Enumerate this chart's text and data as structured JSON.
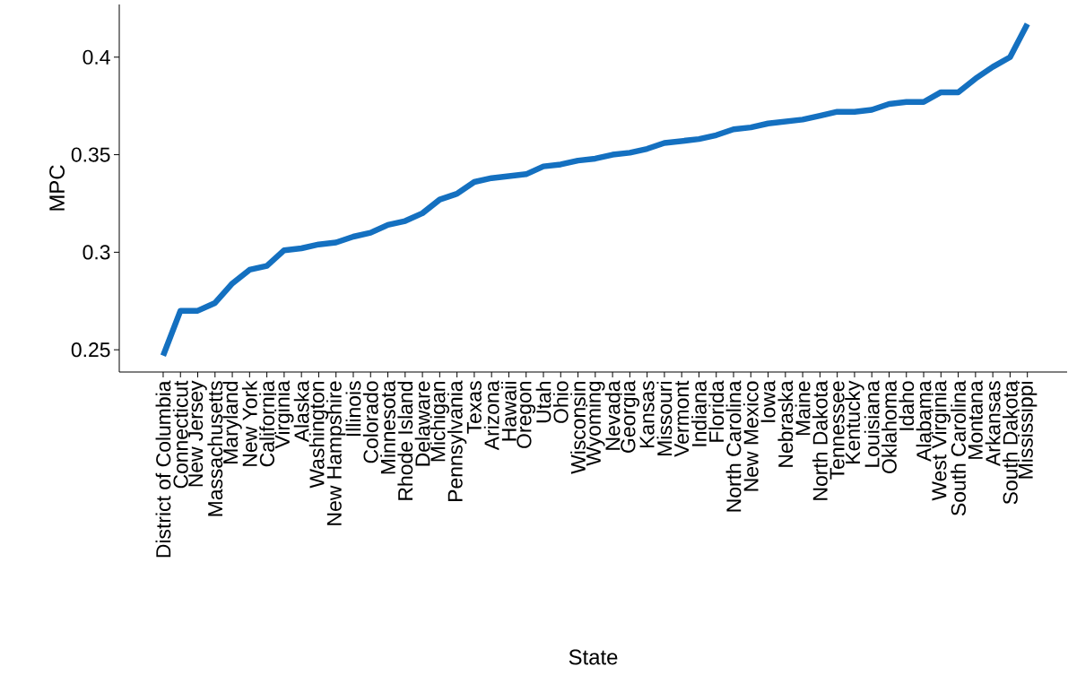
{
  "chart_data": {
    "type": "line",
    "xlabel": "State",
    "ylabel": "MPC",
    "color": "#1470c0",
    "categories": [
      "District of Columbia",
      "Connecticut",
      "New Jersey",
      "Massachusetts",
      "Maryland",
      "New York",
      "California",
      "Virginia",
      "Alaska",
      "Washington",
      "New Hampshire",
      "Illinois",
      "Colorado",
      "Minnesota",
      "Rhode Island",
      "Delaware",
      "Michigan",
      "Pennsylvania",
      "Texas",
      "Arizona",
      "Hawaii",
      "Oregon",
      "Utah",
      "Ohio",
      "Wisconsin",
      "Wyoming",
      "Nevada",
      "Georgia",
      "Kansas",
      "Missouri",
      "Vermont",
      "Indiana",
      "Florida",
      "North Carolina",
      "New Mexico",
      "Iowa",
      "Nebraska",
      "Maine",
      "North Dakota",
      "Tennessee",
      "Kentucky",
      "Louisiana",
      "Oklahoma",
      "Idaho",
      "Alabama",
      "West Virginia",
      "South Carolina",
      "Montana",
      "Arkansas",
      "South Dakota",
      "Mississippi"
    ],
    "values": [
      0.247,
      0.27,
      0.27,
      0.274,
      0.284,
      0.291,
      0.293,
      0.301,
      0.302,
      0.304,
      0.305,
      0.308,
      0.31,
      0.314,
      0.316,
      0.32,
      0.327,
      0.33,
      0.336,
      0.338,
      0.339,
      0.34,
      0.344,
      0.345,
      0.347,
      0.348,
      0.35,
      0.351,
      0.353,
      0.356,
      0.357,
      0.358,
      0.36,
      0.363,
      0.364,
      0.366,
      0.367,
      0.368,
      0.37,
      0.372,
      0.372,
      0.373,
      0.376,
      0.377,
      0.377,
      0.382,
      0.382,
      0.389,
      0.395,
      0.4,
      0.417
    ],
    "ylim": [
      0.2386,
      0.427
    ],
    "yticks": [
      0.25,
      0.3,
      0.35,
      0.4
    ]
  }
}
